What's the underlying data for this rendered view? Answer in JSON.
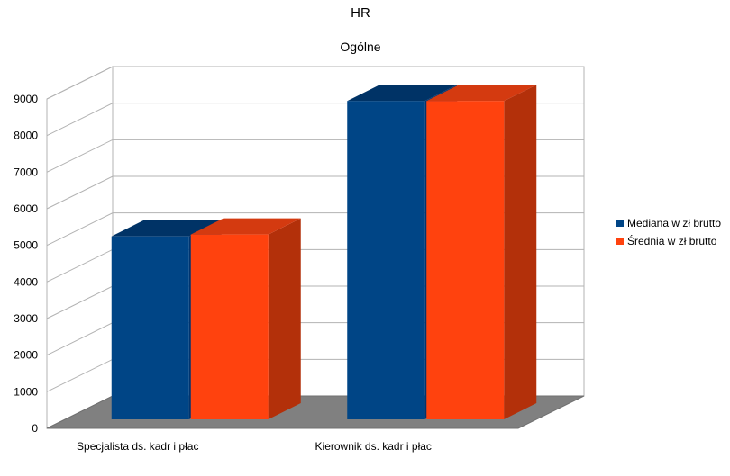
{
  "chart_data": {
    "type": "bar",
    "title": "HR",
    "subtitle": "Ogólne",
    "categories": [
      "Specjalista ds. kadr i płac",
      "Kierownik ds. kadr i płac"
    ],
    "series": [
      {
        "name": "Mediana w zł brutto",
        "values": [
          5000,
          8700
        ],
        "color": "#004586",
        "top_color": "#003366",
        "side_color": "#003570"
      },
      {
        "name": "Średnia w zł brutto",
        "values": [
          5050,
          8700
        ],
        "color": "#ff420e",
        "top_color": "#d43a10",
        "side_color": "#b3300a"
      }
    ],
    "yticks": [
      0,
      1000,
      2000,
      3000,
      4000,
      5000,
      6000,
      7000,
      8000,
      9000
    ],
    "ylim": [
      0,
      9000
    ],
    "grid": true,
    "legend_position": "right",
    "floor_color": "#808080"
  }
}
